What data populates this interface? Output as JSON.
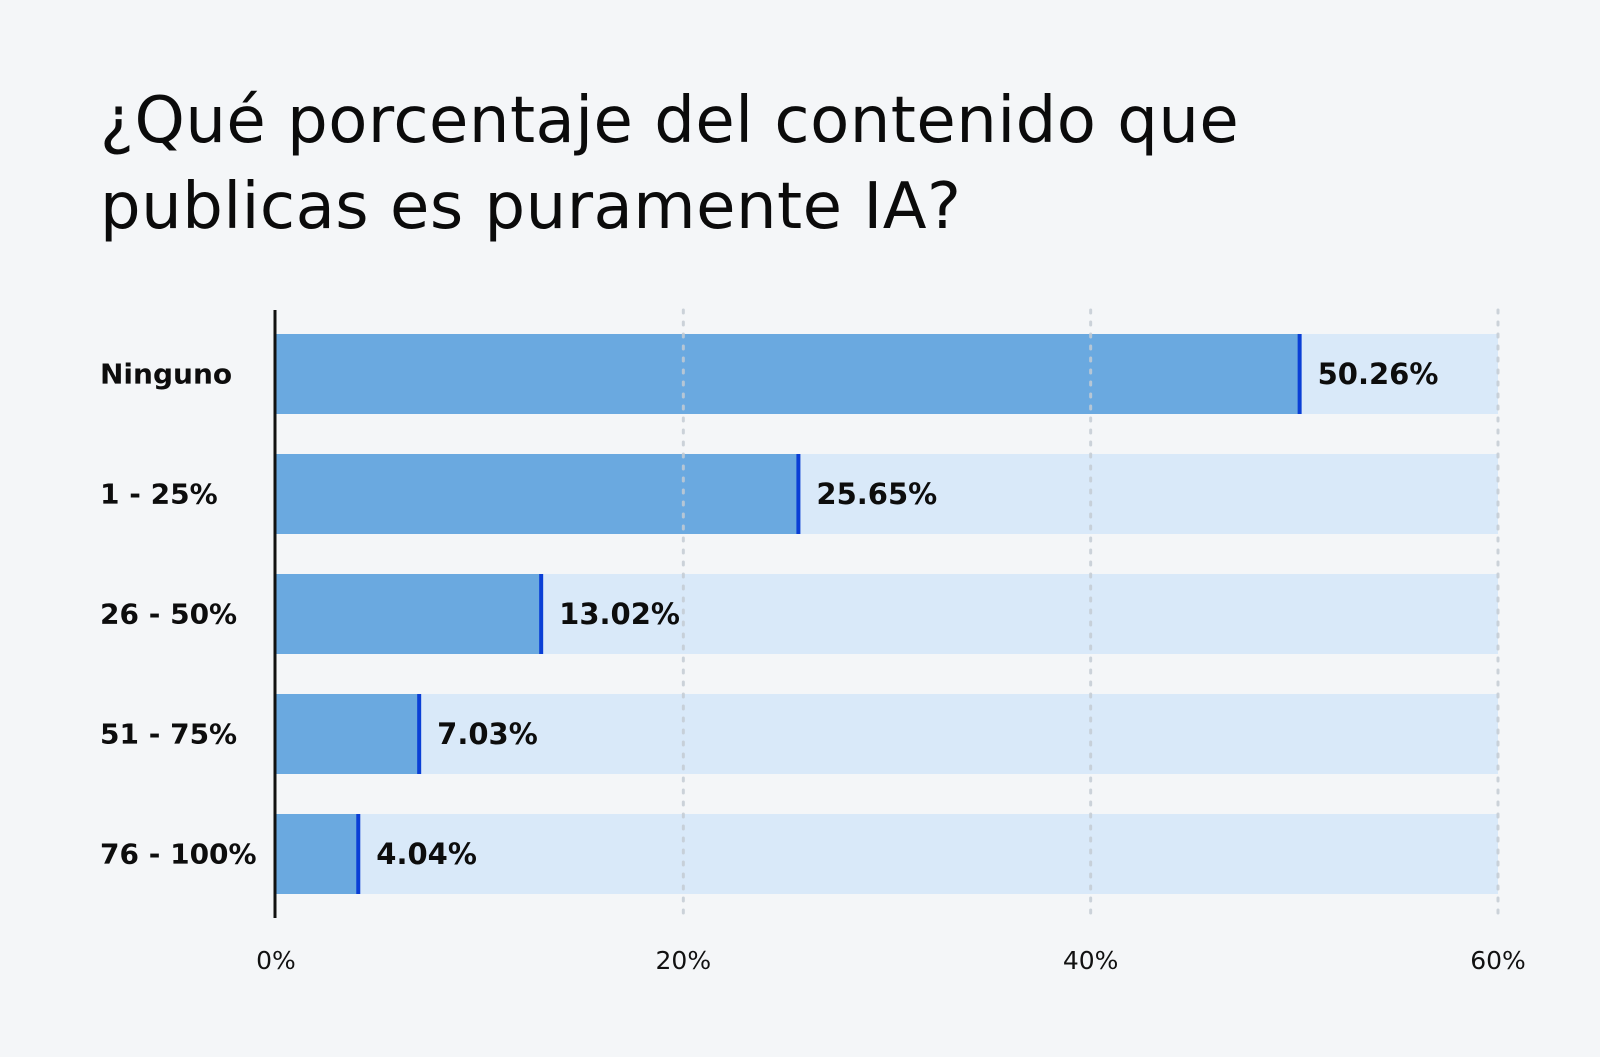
{
  "chart_data": {
    "type": "bar",
    "orientation": "horizontal",
    "title": "¿Qué porcentaje del contenido que publicas es puramente IA?",
    "categories": [
      "Ninguno",
      "1 - 25%",
      "26 - 50%",
      "51 - 75%",
      "76 - 100%"
    ],
    "values": [
      50.26,
      25.65,
      13.02,
      7.03,
      4.04
    ],
    "value_labels": [
      "50.26%",
      "25.65%",
      "13.02%",
      "7.03%",
      "4.04%"
    ],
    "xlim": [
      0,
      60
    ],
    "x_ticks": [
      0,
      20,
      40,
      60
    ],
    "x_tick_labels": [
      "0%",
      "20%",
      "40%",
      "60%"
    ],
    "xlabel": "",
    "ylabel": "",
    "grid": "vertical dotted",
    "legend": "none",
    "colors": {
      "bar": "#6aa9e0",
      "bar_track": "#d9e9f9",
      "bar_edge": "#0a3fd6",
      "axis": "#111111",
      "grid": "#c4ccd4",
      "background": "#f4f6f8"
    }
  }
}
